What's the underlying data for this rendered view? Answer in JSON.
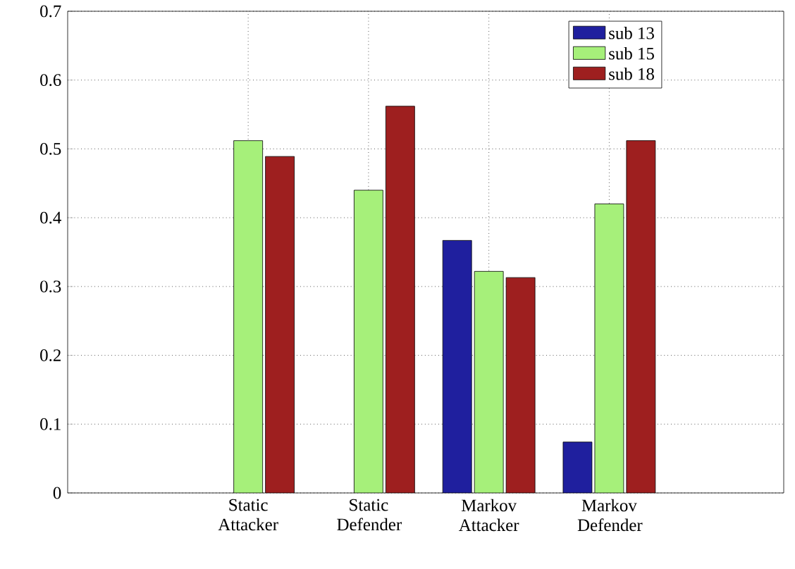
{
  "chart_data": {
    "type": "bar",
    "categories": [
      "Static Attacker",
      "Static Defender",
      "Markov Attacker",
      "Markov Defender"
    ],
    "series": [
      {
        "name": "sub 13",
        "color": "#1f1f9e",
        "values": [
          null,
          null,
          0.367,
          0.074
        ]
      },
      {
        "name": "sub 15",
        "color": "#a6f07a",
        "values": [
          0.512,
          0.44,
          0.322,
          0.42
        ]
      },
      {
        "name": "sub 18",
        "color": "#9e1f1f",
        "values": [
          0.489,
          0.562,
          0.313,
          0.512
        ]
      }
    ],
    "ylim": [
      0,
      0.7
    ],
    "yticks": [
      0,
      0.1,
      0.2,
      0.3,
      0.4,
      0.5,
      0.6,
      0.7
    ],
    "grid": true,
    "legend": "top right"
  }
}
